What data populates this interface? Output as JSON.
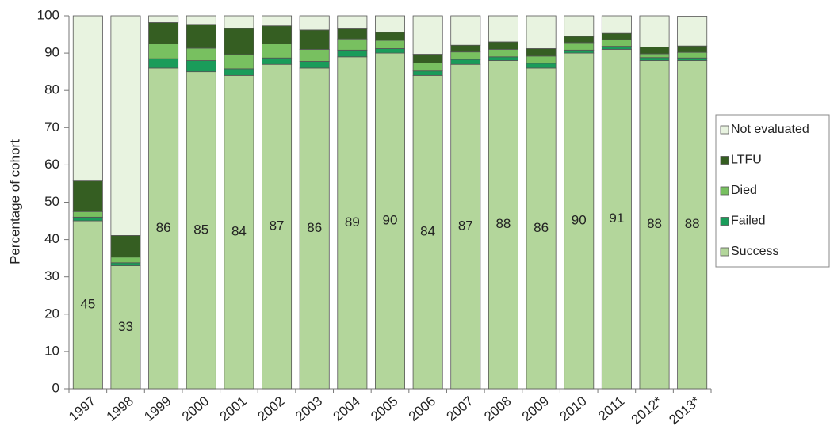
{
  "chart_data": {
    "type": "stacked_bar",
    "y_label": "Percentage of cohort",
    "categories": [
      "1997",
      "1998",
      "1999",
      "2000",
      "2001",
      "2002",
      "2003",
      "2004",
      "2005",
      "2006",
      "2007",
      "2008",
      "2009",
      "2010",
      "2011",
      "2012*",
      "2013*"
    ],
    "series": [
      {
        "name": "Success",
        "color": "#b3d69b",
        "values": [
          45,
          33,
          86,
          85,
          84,
          87,
          86,
          89,
          90,
          84,
          87,
          88,
          86,
          90,
          91,
          88,
          88
        ]
      },
      {
        "name": "Failed",
        "color": "#1a9c5a",
        "values": [
          1,
          0.8,
          2.5,
          3,
          1.8,
          1.7,
          1.8,
          1.8,
          1.2,
          1.2,
          1.3,
          1,
          1.3,
          0.8,
          0.8,
          0.8,
          0.7
        ]
      },
      {
        "name": "Died",
        "color": "#78c060",
        "values": [
          1.5,
          1.5,
          4,
          3.3,
          3.8,
          3.8,
          3.2,
          3,
          2.2,
          2.2,
          2,
          2,
          1.9,
          2,
          1.8,
          1,
          1.5
        ]
      },
      {
        "name": "LTFU",
        "color": "#355e22",
        "values": [
          8.2,
          5.8,
          5.7,
          6.4,
          7,
          4.8,
          5.2,
          2.7,
          2.2,
          2.3,
          1.8,
          2,
          2,
          1.7,
          1.7,
          1.8,
          1.7
        ]
      },
      {
        "name": "Not evaluated",
        "color": "#e8f3e0",
        "values": [
          44.3,
          58.9,
          1.8,
          2.3,
          3.4,
          2.7,
          3.8,
          3.5,
          4.4,
          10.3,
          7.9,
          7,
          8.8,
          5.5,
          4.7,
          8.4,
          8
        ]
      }
    ],
    "data_labels_series": 0,
    "ylim": [
      0,
      100
    ],
    "yticks": [
      0,
      10,
      20,
      30,
      40,
      50,
      60,
      70,
      80,
      90,
      100
    ],
    "grid": false,
    "legend": "right"
  }
}
